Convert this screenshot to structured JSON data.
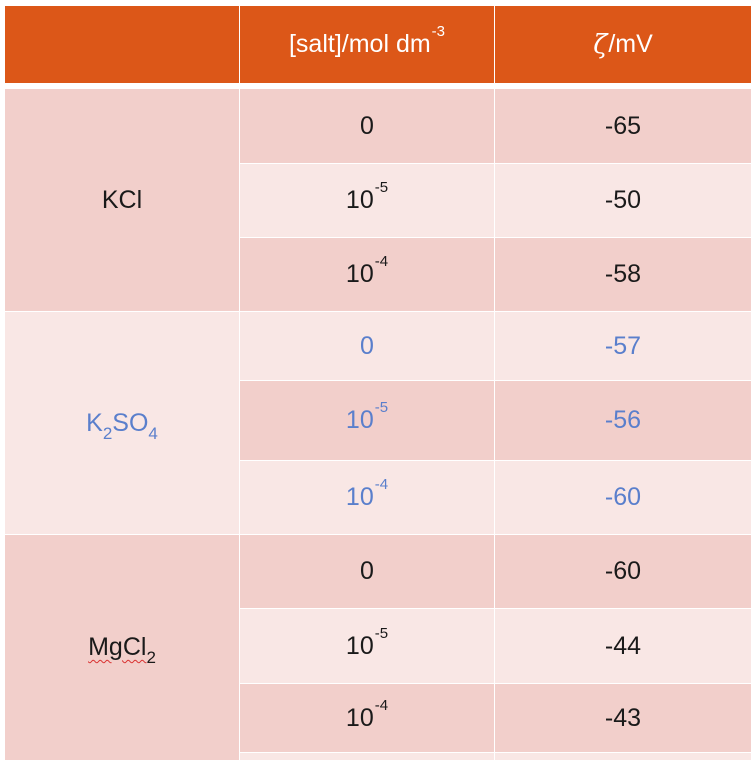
{
  "header": {
    "salt_col_main": "[salt]/mol dm",
    "salt_col_sup": "-3",
    "zeta_symbol": "ζ",
    "zeta_unit": "/mV"
  },
  "groups": [
    {
      "salt_main": "KCl",
      "salt_sub1": "",
      "salt_mid": "",
      "salt_sub2": "",
      "rows": [
        {
          "conc_base": "0",
          "conc_exp": "",
          "zeta": "-65"
        },
        {
          "conc_base": "10",
          "conc_exp": "-5",
          "zeta": "-50"
        },
        {
          "conc_base": "10",
          "conc_exp": "-4",
          "zeta": "-58"
        }
      ]
    },
    {
      "salt_main": "K",
      "salt_sub1": "2",
      "salt_mid": "SO",
      "salt_sub2": "4",
      "text_color": "#5a7fcc",
      "rows": [
        {
          "conc_base": "0",
          "conc_exp": "",
          "zeta": "-57"
        },
        {
          "conc_base": "10",
          "conc_exp": "-5",
          "zeta": "-56"
        },
        {
          "conc_base": "10",
          "conc_exp": "-4",
          "zeta": "-60"
        }
      ]
    },
    {
      "salt_main": "MgCl",
      "salt_sub1": "2",
      "salt_mid": "",
      "salt_sub2": "",
      "rows": [
        {
          "conc_base": "0",
          "conc_exp": "",
          "zeta": "-60"
        },
        {
          "conc_base": "10",
          "conc_exp": "-5",
          "zeta": "-44"
        },
        {
          "conc_base": "10",
          "conc_exp": "-4",
          "zeta": "-43"
        }
      ]
    }
  ],
  "colors": {
    "header_bg": "#dc5718",
    "row_dark": "#f2cfcb",
    "row_light": "#f9e7e5",
    "accent_text": "#5a7fcc"
  }
}
